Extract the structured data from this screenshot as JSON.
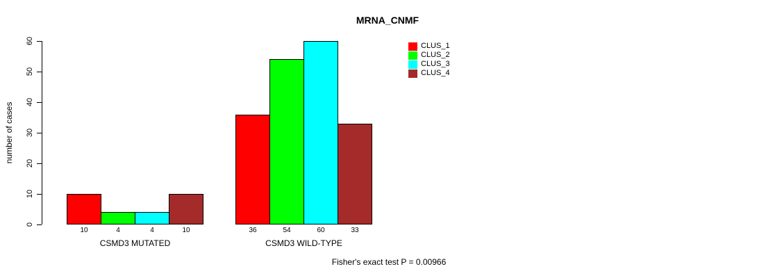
{
  "chart_data": {
    "type": "bar",
    "title": "MRNA_CNMF",
    "ylabel": "number of cases",
    "ylim": [
      0,
      60
    ],
    "yticks": [
      0,
      10,
      20,
      30,
      40,
      50,
      60
    ],
    "categories": [
      "CSMD3 MUTATED",
      "CSMD3 WILD-TYPE"
    ],
    "series": [
      {
        "name": "CLUS_1",
        "color": "#FF0000",
        "values": [
          10,
          36
        ]
      },
      {
        "name": "CLUS_2",
        "color": "#00FF00",
        "values": [
          4,
          54
        ]
      },
      {
        "name": "CLUS_3",
        "color": "#00FFFF",
        "values": [
          4,
          60
        ]
      },
      {
        "name": "CLUS_4",
        "color": "#A52A2A",
        "values": [
          10,
          33
        ]
      }
    ],
    "bar_value_labels": [
      [
        10,
        4,
        4,
        10
      ],
      [
        36,
        54,
        60,
        33
      ]
    ],
    "legend_position": "top-right",
    "grid": false,
    "annotation": "Fisher's exact test P = 0.00966",
    "axis_color": "#000000",
    "bar_border_color": "#000000",
    "background_color": "#FFFFFF"
  }
}
